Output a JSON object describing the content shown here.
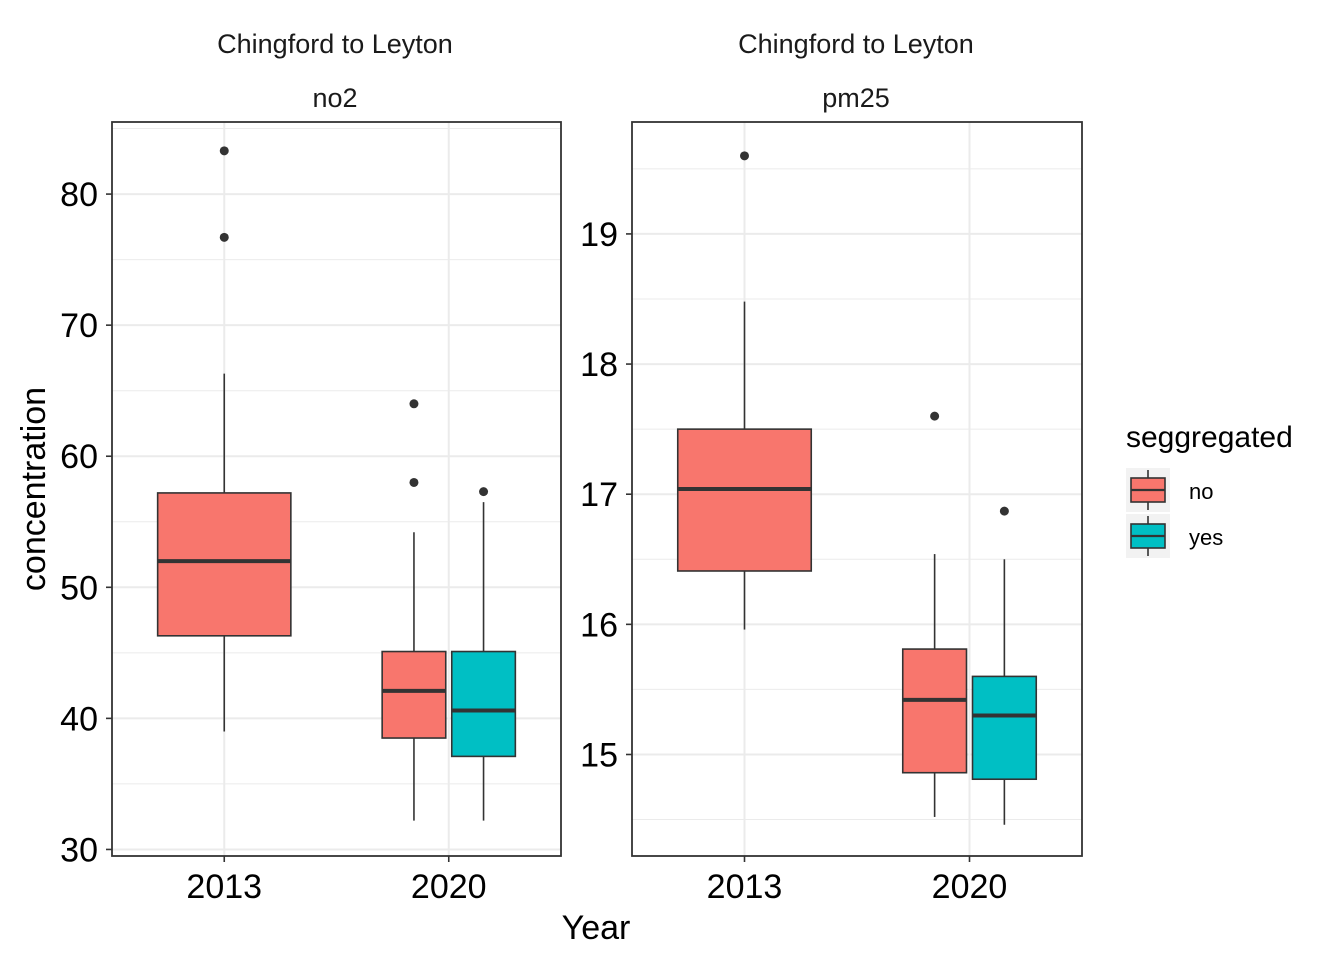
{
  "chart_data": [
    {
      "type": "box",
      "title": "Chingford to Leyton",
      "subtitle": "no2",
      "ylabel": "concentration",
      "xlabel": "Year",
      "categories": [
        "2013",
        "2020"
      ],
      "ylim": [
        29.5,
        85.5
      ],
      "yticks": [
        30,
        40,
        50,
        60,
        70,
        80
      ],
      "grid": true,
      "series": [
        {
          "name": "no",
          "boxes": [
            {
              "category": "2013",
              "min": 39.0,
              "q1": 46.3,
              "median": 52.0,
              "q3": 57.2,
              "max": 66.3,
              "outliers": [
                76.7,
                83.3
              ]
            },
            {
              "category": "2020",
              "min": 32.2,
              "q1": 38.5,
              "median": 42.1,
              "q3": 45.1,
              "max": 54.2,
              "outliers": [
                58.0,
                64.0
              ]
            }
          ]
        },
        {
          "name": "yes",
          "boxes": [
            {
              "category": "2020",
              "min": 32.2,
              "q1": 37.1,
              "median": 40.6,
              "q3": 45.1,
              "max": 56.5,
              "outliers": [
                57.3
              ]
            }
          ]
        }
      ]
    },
    {
      "type": "box",
      "title": "Chingford to Leyton",
      "subtitle": "pm25",
      "ylabel": "",
      "xlabel": "Year",
      "categories": [
        "2013",
        "2020"
      ],
      "ylim": [
        14.22,
        19.86
      ],
      "yticks": [
        15,
        16,
        17,
        18,
        19
      ],
      "grid": true,
      "series": [
        {
          "name": "no",
          "boxes": [
            {
              "category": "2013",
              "min": 15.96,
              "q1": 16.41,
              "median": 17.04,
              "q3": 17.5,
              "max": 18.48,
              "outliers": [
                19.6
              ]
            },
            {
              "category": "2020",
              "min": 14.52,
              "q1": 14.86,
              "median": 15.42,
              "q3": 15.81,
              "max": 16.54,
              "outliers": [
                17.6
              ]
            }
          ]
        },
        {
          "name": "yes",
          "boxes": [
            {
              "category": "2020",
              "min": 14.46,
              "q1": 14.81,
              "median": 15.3,
              "q3": 15.6,
              "max": 16.5,
              "outliers": [
                16.87
              ]
            }
          ]
        }
      ]
    }
  ],
  "legend": {
    "title": "seggregated",
    "placement": "right",
    "items": [
      {
        "label": "no",
        "color": "#F8766D"
      },
      {
        "label": "yes",
        "color": "#00BFC4"
      }
    ]
  },
  "colors": {
    "no": "#F8766D",
    "yes": "#00BFC4",
    "outline": "#333333",
    "grid": "#ebebeb"
  }
}
